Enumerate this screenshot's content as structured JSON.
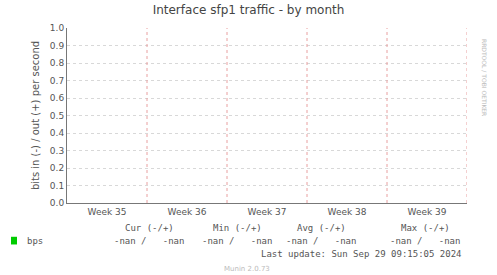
{
  "chart_data": {
    "type": "line",
    "title": "Interface sfp1 traffic - by month",
    "y_label": "bits in (-) / out (+) per second",
    "categories": [
      "Week 35",
      "Week 36",
      "Week 37",
      "Week 38",
      "Week 39"
    ],
    "series": [
      {
        "name": "bps",
        "color": "#00cc00",
        "values": [
          null,
          null,
          null,
          null,
          null
        ]
      }
    ],
    "ylim": [
      0,
      1
    ],
    "yticks": [
      {
        "value": 0,
        "label": "0.0"
      },
      {
        "value": 0.1,
        "label": "0.1"
      },
      {
        "value": 0.2,
        "label": "0.2"
      },
      {
        "value": 0.3,
        "label": "0.3"
      },
      {
        "value": 0.4,
        "label": "0.4"
      },
      {
        "value": 0.5,
        "label": "0.5"
      },
      {
        "value": 0.6,
        "label": "0.6"
      },
      {
        "value": 0.7,
        "label": "0.7"
      },
      {
        "value": 0.8,
        "label": "0.8"
      },
      {
        "value": 0.9,
        "label": "0.9"
      },
      {
        "value": 1,
        "label": "1.0"
      }
    ],
    "grid": true,
    "stats": {
      "columns": [
        "Cur (-/+)",
        "Min (-/+)",
        "Avg (-/+)",
        "Max (-/+)"
      ],
      "rows": [
        {
          "name": "bps",
          "values": [
            "-nan /   -nan",
            "-nan /   -nan",
            "-nan /   -nan",
            "-nan /   -nan"
          ]
        }
      ]
    },
    "footer": "Last update: Sun Sep 29 09:15:05 2024",
    "credits": [
      "RRDTOOL / TOBI OETIKER",
      "Munin 2.0.73"
    ]
  }
}
